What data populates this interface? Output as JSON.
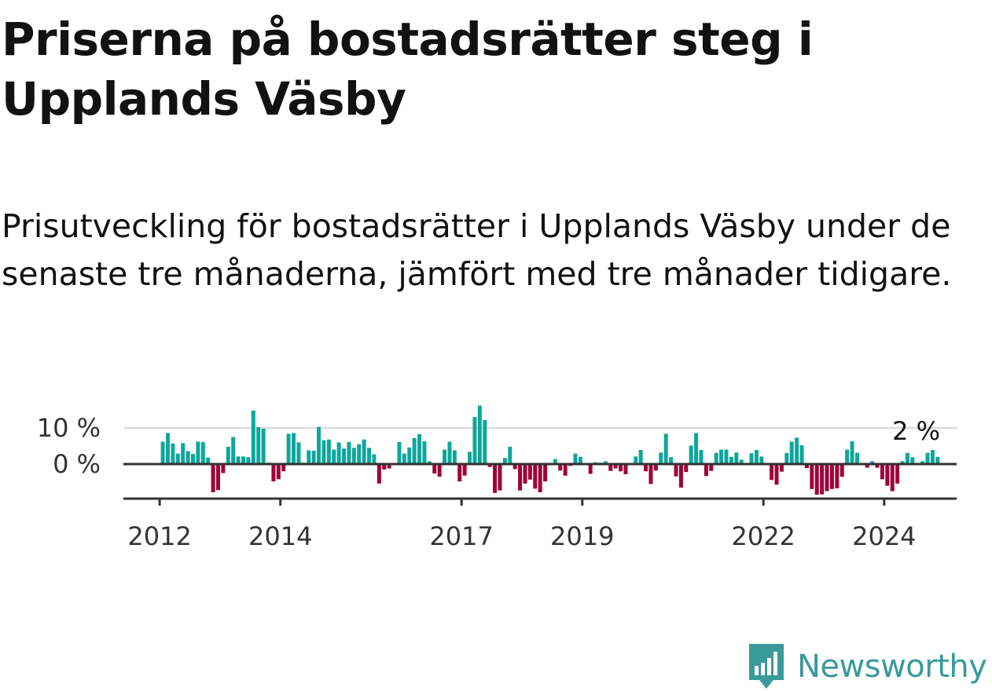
{
  "title": "Priserna på bostadsrätter steg i Upplands Väsby",
  "subtitle": "Prisutveckling för bostadsrätter i Upplands Väsby under de senaste tre månaderna, jämfört med tre månader tidigare.",
  "brand": "Newsworthy",
  "colors": {
    "positive": "#0ea69b",
    "negative": "#9e0039",
    "axis": "#333333",
    "grid": "#dddddd",
    "brand": "#3a9a9a"
  },
  "chart_data": {
    "type": "bar",
    "title": "Priserna på bostadsrätter steg i Upplands Väsby",
    "xlabel": "",
    "ylabel": "",
    "ylim": [
      -10,
      17
    ],
    "x_range": [
      2011.4,
      2025.2
    ],
    "yticks": [
      {
        "value": 0,
        "label": "0 %"
      },
      {
        "value": 10,
        "label": "10 %"
      }
    ],
    "xticks": [
      {
        "value": 2012,
        "label": "2012"
      },
      {
        "value": 2014,
        "label": "2014"
      },
      {
        "value": 2017,
        "label": "2017"
      },
      {
        "value": 2019,
        "label": "2019"
      },
      {
        "value": 2022,
        "label": "2022"
      },
      {
        "value": 2024,
        "label": "2024"
      }
    ],
    "start": [
      2012,
      1
    ],
    "step": "month",
    "last_value_label": "2 %",
    "values": [
      6.2,
      8.6,
      5.7,
      2.9,
      5.8,
      3.6,
      2.8,
      6.2,
      6.1,
      1.8,
      -7.8,
      -7.2,
      -2.5,
      4.8,
      7.5,
      2.1,
      2.1,
      1.9,
      14.8,
      10.2,
      9.8,
      0.4,
      -4.8,
      -4.2,
      -2.0,
      8.4,
      8.6,
      6.0,
      0.4,
      3.8,
      3.7,
      10.3,
      6.6,
      6.8,
      4.0,
      6.0,
      4.3,
      6.1,
      4.5,
      5.5,
      6.8,
      4.5,
      2.7,
      -5.4,
      -1.5,
      -1.2,
      0.0,
      6.1,
      2.9,
      4.6,
      7.2,
      8.3,
      6.3,
      0.8,
      -2.6,
      -3.5,
      4.0,
      6.2,
      3.8,
      -4.8,
      -3.2,
      3.4,
      13.0,
      16.2,
      12.2,
      -0.8,
      -8.0,
      -7.3,
      1.7,
      4.8,
      -1.4,
      -7.3,
      -5.4,
      -4.3,
      -6.8,
      -7.8,
      -4.8,
      0.0,
      1.4,
      -1.8,
      -3.2,
      -0.5,
      2.9,
      2.0,
      0.0,
      -2.7,
      0.5,
      0.4,
      0.8,
      -1.9,
      -1.2,
      -2.0,
      -2.8,
      0.0,
      2.1,
      3.9,
      -2.0,
      -5.5,
      -1.8,
      3.2,
      8.4,
      1.9,
      -3.4,
      -6.5,
      -2.2,
      5.1,
      8.6,
      3.9,
      -3.3,
      -1.9,
      3.1,
      4.0,
      4.0,
      2.0,
      3.2,
      1.2,
      0.0,
      3.0,
      3.9,
      2.1,
      -0.2,
      -4.4,
      -5.7,
      -2.1,
      3.1,
      6.2,
      7.3,
      5.2,
      -1.1,
      -6.9,
      -8.5,
      -8.4,
      -7.5,
      -6.9,
      -6.7,
      -3.5,
      4.0,
      6.3,
      3.1,
      0.0,
      -1.0,
      0.8,
      -1.0,
      -4.2,
      -6.0,
      -7.5,
      -5.4,
      0.8,
      3.1,
      1.9,
      0.0,
      0.8,
      3.1,
      3.9,
      2.0
    ]
  }
}
